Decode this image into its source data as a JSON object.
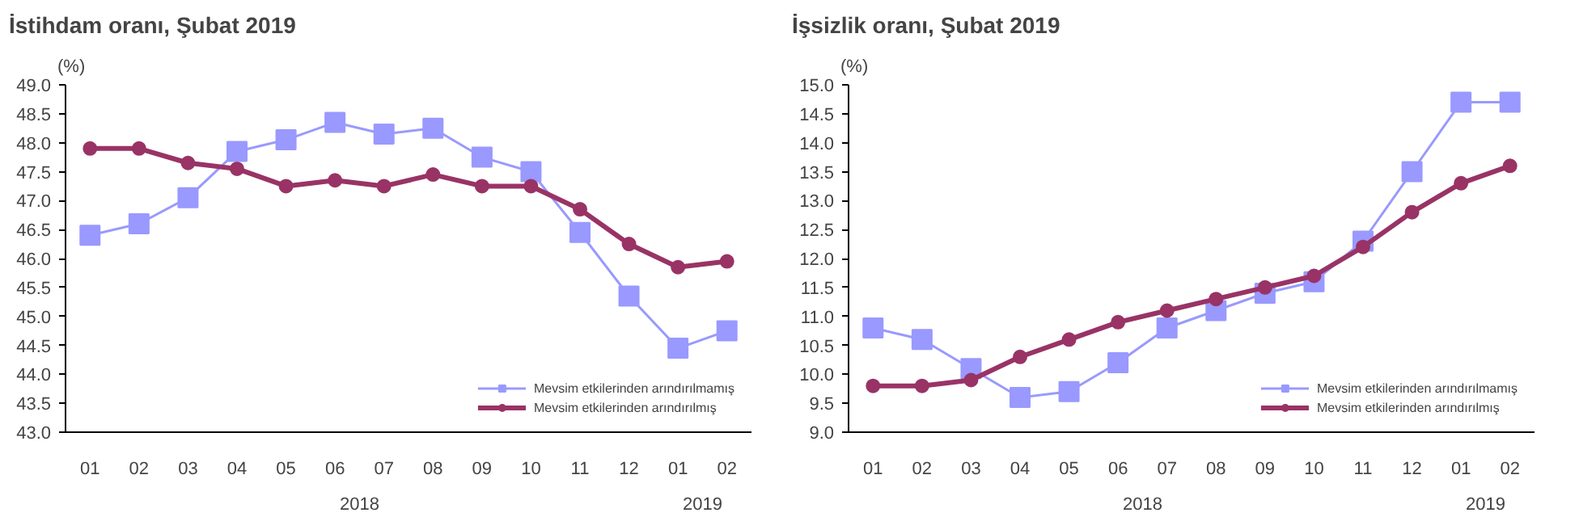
{
  "chart_data": [
    {
      "type": "line",
      "title": "İstihdam oranı, Şubat 2019",
      "ylabel": "(%)",
      "categories": [
        "01",
        "02",
        "03",
        "04",
        "05",
        "06",
        "07",
        "08",
        "09",
        "10",
        "11",
        "12",
        "01",
        "02"
      ],
      "annotations": [
        "2018",
        "2019"
      ],
      "series": [
        {
          "name": "Mevsim etkilerinden arındırılmamış",
          "color": "#9999ff",
          "marker": "square",
          "values": [
            46.4,
            46.6,
            47.05,
            47.85,
            48.05,
            48.35,
            48.15,
            48.25,
            47.75,
            47.5,
            46.45,
            45.35,
            44.45,
            44.75
          ]
        },
        {
          "name": "Mevsim etkilerinden arındırılmış",
          "color": "#993366",
          "marker": "circle",
          "values": [
            47.9,
            47.9,
            47.65,
            47.55,
            47.25,
            47.35,
            47.25,
            47.45,
            47.25,
            47.25,
            46.85,
            46.25,
            45.85,
            45.95
          ]
        }
      ],
      "ylim": [
        43,
        49
      ],
      "yticks": [
        {
          "value": 43,
          "label": "43.0"
        },
        {
          "value": 43.5,
          "label": "43.5"
        },
        {
          "value": 44,
          "label": "44.0"
        },
        {
          "value": 44.5,
          "label": "44.5"
        },
        {
          "value": 45,
          "label": "45.0"
        },
        {
          "value": 45.5,
          "label": "45.5"
        },
        {
          "value": 46,
          "label": "46.0"
        },
        {
          "value": 46.5,
          "label": "46.5"
        },
        {
          "value": 47,
          "label": "47.0"
        },
        {
          "value": 47.5,
          "label": "47.5"
        },
        {
          "value": 48,
          "label": "48.0"
        },
        {
          "value": 48.5,
          "label": "48.5"
        },
        {
          "value": 49,
          "label": "49.0"
        }
      ],
      "grid": false,
      "legend": "bottom right"
    },
    {
      "type": "line",
      "title": "İşsizlik oranı, Şubat 2019",
      "ylabel": "(%)",
      "categories": [
        "01",
        "02",
        "03",
        "04",
        "05",
        "06",
        "07",
        "08",
        "09",
        "10",
        "11",
        "12",
        "01",
        "02"
      ],
      "annotations": [
        "2018",
        "2019"
      ],
      "series": [
        {
          "name": "Mevsim etkilerinden arındırılmamış",
          "color": "#9999ff",
          "marker": "square",
          "values": [
            10.8,
            10.6,
            10.1,
            9.6,
            9.7,
            10.2,
            10.8,
            11.1,
            11.4,
            11.6,
            12.3,
            13.5,
            14.7,
            14.7
          ]
        },
        {
          "name": "Mevsim etkilerinden arındırılmış",
          "color": "#993366",
          "marker": "circle",
          "values": [
            9.8,
            9.8,
            9.9,
            10.3,
            10.6,
            10.9,
            11.1,
            11.3,
            11.5,
            11.7,
            12.2,
            12.8,
            13.3,
            13.6
          ]
        }
      ],
      "ylim": [
        9,
        15
      ],
      "yticks": [
        {
          "value": 9,
          "label": "9.0"
        },
        {
          "value": 9.5,
          "label": "9.5"
        },
        {
          "value": 10,
          "label": "10.0"
        },
        {
          "value": 10.5,
          "label": "10.5"
        },
        {
          "value": 11,
          "label": "11.0"
        },
        {
          "value": 11.5,
          "label": "11.5"
        },
        {
          "value": 12,
          "label": "12.0"
        },
        {
          "value": 12.5,
          "label": "12.5"
        },
        {
          "value": 13,
          "label": "13.0"
        },
        {
          "value": 13.5,
          "label": "13.5"
        },
        {
          "value": 14,
          "label": "14.0"
        },
        {
          "value": 14.5,
          "label": "14.5"
        },
        {
          "value": 15,
          "label": "15.0"
        }
      ],
      "grid": false,
      "legend": "bottom right"
    }
  ]
}
